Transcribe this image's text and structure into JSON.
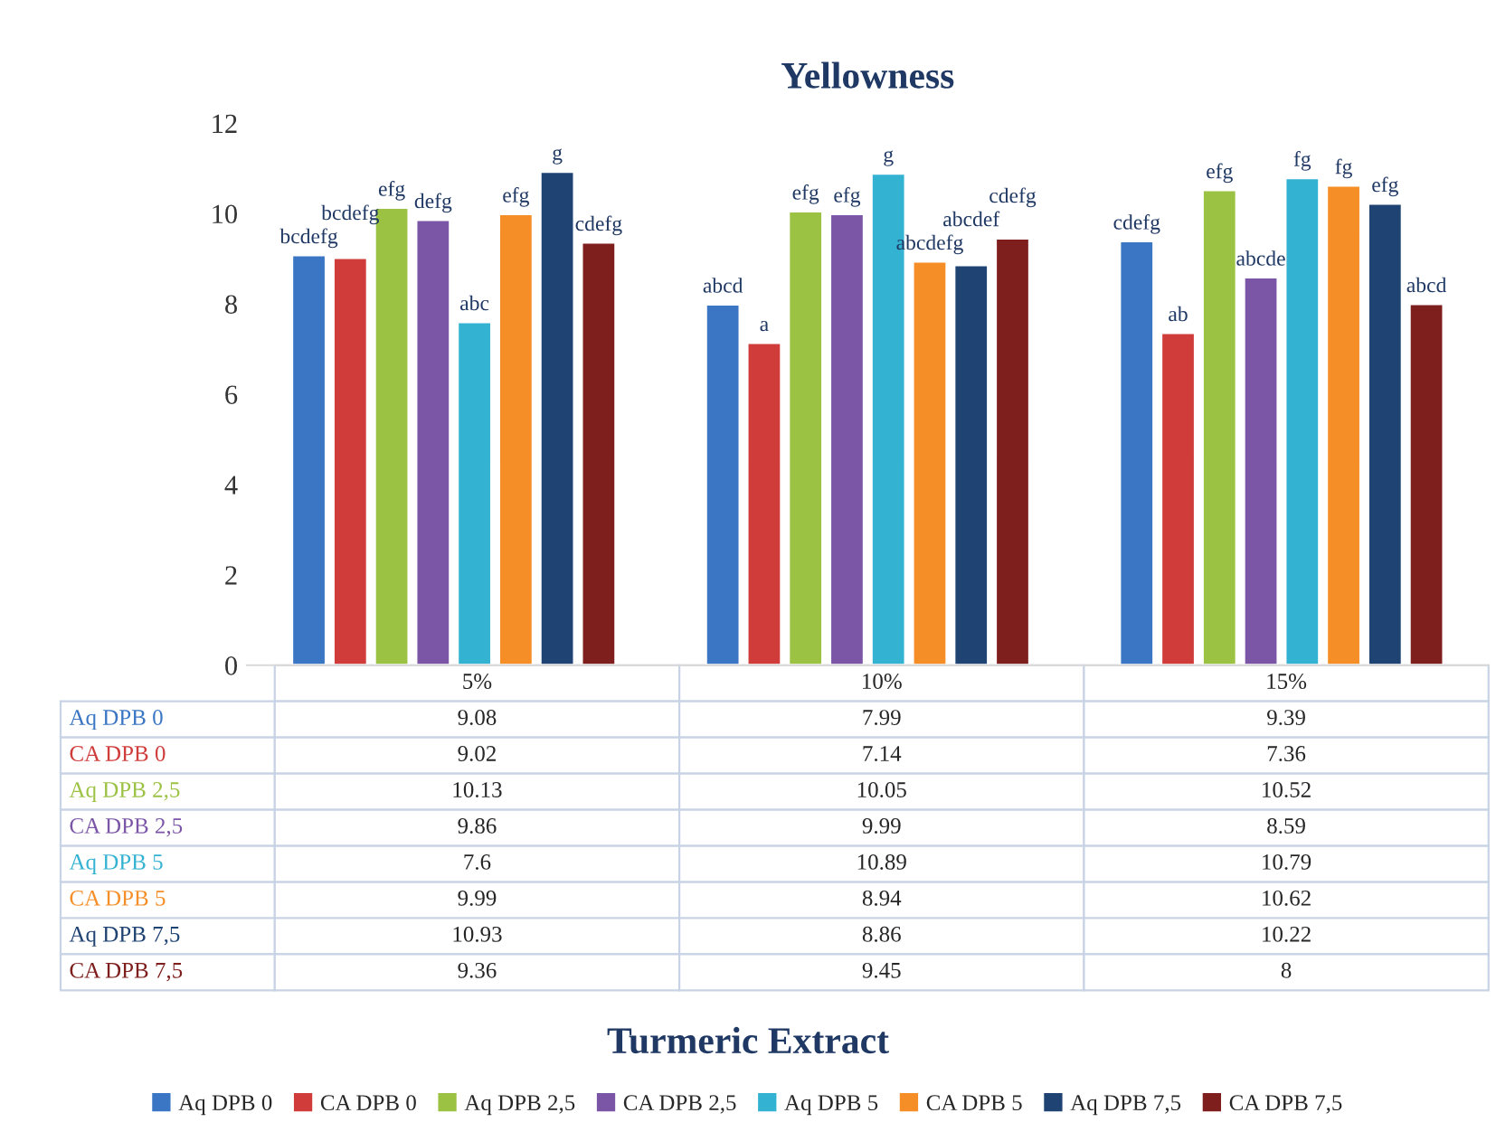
{
  "chart_data": {
    "type": "bar",
    "title": "Yellowness",
    "categories": [
      "5%",
      "10%",
      "15%"
    ],
    "series": [
      {
        "name": "Aq DPB 0",
        "color": "#3a76c4",
        "values": [
          9.08,
          7.99,
          9.39
        ]
      },
      {
        "name": "CA DPB 0",
        "color": "#d03c3a",
        "values": [
          9.02,
          7.14,
          7.36
        ]
      },
      {
        "name": "Aq DPB 2,5",
        "color": "#9cc244",
        "values": [
          10.13,
          10.05,
          10.52
        ]
      },
      {
        "name": "CA DPB 2,5",
        "color": "#7b55a6",
        "values": [
          9.86,
          9.99,
          8.59
        ]
      },
      {
        "name": "Aq DPB 5",
        "color": "#34b2d2",
        "values": [
          7.6,
          10.89,
          10.79
        ]
      },
      {
        "name": "CA DPB 5",
        "color": "#f68e28",
        "values": [
          9.99,
          8.94,
          10.62
        ]
      },
      {
        "name": "Aq DPB 7,5",
        "color": "#1f4373",
        "values": [
          10.93,
          8.86,
          10.22
        ]
      },
      {
        "name": "CA DPB 7,5",
        "color": "#7e1f1e",
        "values": [
          9.36,
          9.45,
          8
        ]
      }
    ],
    "annotations": [
      "bcdefg",
      "bcdefg",
      "efg",
      "defg",
      "abc",
      "efg",
      "g",
      "cdefg",
      "abcd",
      "a",
      "efg",
      "efg",
      "g",
      "abcdefg",
      "abcdef",
      "cdefg",
      "cdefg",
      "ab",
      "efg",
      "abcde",
      "fg",
      "fg",
      "efg",
      "abcd",
      "Turmeric Extract"
    ],
    "ylim": [
      0,
      12
    ],
    "yticks": [
      0,
      2,
      4,
      6,
      8,
      10,
      12
    ],
    "grid": false,
    "legend": "bottom",
    "data_labels": true
  }
}
